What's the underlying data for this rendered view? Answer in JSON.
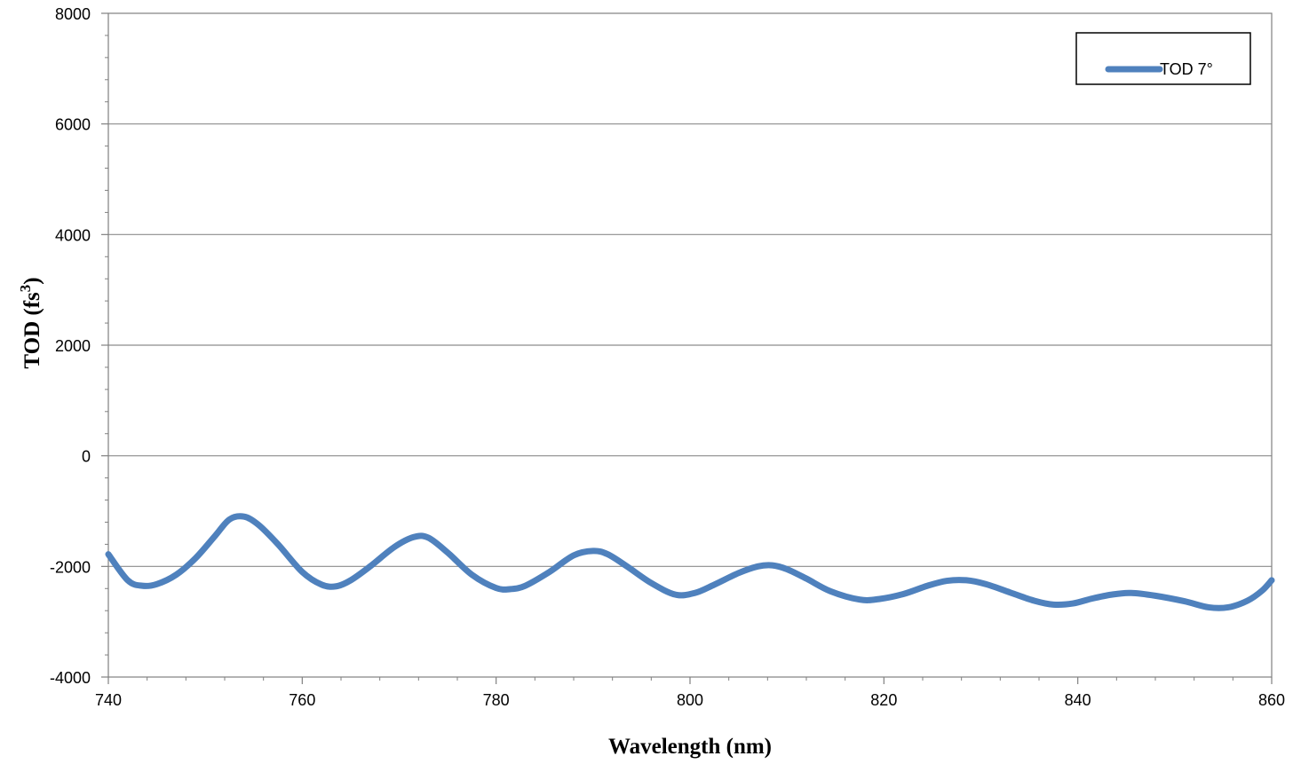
{
  "chart_data": {
    "type": "line",
    "xlabel": "Wavelength (nm)",
    "ylabel": {
      "main": "TOD (fs",
      "sup": "3",
      "end": ")"
    },
    "xlim": [
      740,
      860
    ],
    "ylim": [
      -4000,
      8000
    ],
    "x_ticks": [
      "740",
      "760",
      "780",
      "800",
      "820",
      "840",
      "860"
    ],
    "y_ticks": [
      "-4000",
      "-2000",
      "0",
      "2000",
      "4000",
      "6000",
      "8000"
    ],
    "grid": "horizontal",
    "legend_position": "top-right",
    "series": [
      {
        "name": "TOD 7°",
        "color": "#4F81BD",
        "points": [
          [
            740,
            -1780
          ],
          [
            742,
            -2250
          ],
          [
            743.5,
            -2350
          ],
          [
            745,
            -2320
          ],
          [
            747,
            -2150
          ],
          [
            749,
            -1850
          ],
          [
            751,
            -1450
          ],
          [
            752.5,
            -1150
          ],
          [
            754,
            -1100
          ],
          [
            755.5,
            -1250
          ],
          [
            757.5,
            -1600
          ],
          [
            760,
            -2100
          ],
          [
            762,
            -2330
          ],
          [
            763.5,
            -2360
          ],
          [
            765,
            -2250
          ],
          [
            767,
            -2000
          ],
          [
            769.5,
            -1650
          ],
          [
            771.5,
            -1470
          ],
          [
            773,
            -1480
          ],
          [
            775,
            -1750
          ],
          [
            777.5,
            -2150
          ],
          [
            780,
            -2390
          ],
          [
            781.5,
            -2410
          ],
          [
            783,
            -2350
          ],
          [
            785.5,
            -2100
          ],
          [
            788,
            -1800
          ],
          [
            790,
            -1720
          ],
          [
            791.5,
            -1780
          ],
          [
            793.5,
            -2000
          ],
          [
            796,
            -2300
          ],
          [
            798.5,
            -2510
          ],
          [
            800.5,
            -2480
          ],
          [
            802.5,
            -2330
          ],
          [
            805,
            -2120
          ],
          [
            807,
            -2000
          ],
          [
            808.5,
            -1980
          ],
          [
            810,
            -2050
          ],
          [
            812,
            -2220
          ],
          [
            814.5,
            -2450
          ],
          [
            817.5,
            -2600
          ],
          [
            819.5,
            -2590
          ],
          [
            822,
            -2500
          ],
          [
            824.5,
            -2350
          ],
          [
            826.5,
            -2260
          ],
          [
            828.5,
            -2250
          ],
          [
            830.5,
            -2320
          ],
          [
            833,
            -2470
          ],
          [
            835.5,
            -2620
          ],
          [
            837.5,
            -2690
          ],
          [
            839.5,
            -2670
          ],
          [
            841.5,
            -2580
          ],
          [
            843.5,
            -2510
          ],
          [
            845.5,
            -2480
          ],
          [
            848,
            -2530
          ],
          [
            851,
            -2630
          ],
          [
            853.5,
            -2740
          ],
          [
            855.5,
            -2740
          ],
          [
            857.5,
            -2620
          ],
          [
            859,
            -2440
          ],
          [
            860,
            -2250
          ]
        ]
      }
    ]
  }
}
